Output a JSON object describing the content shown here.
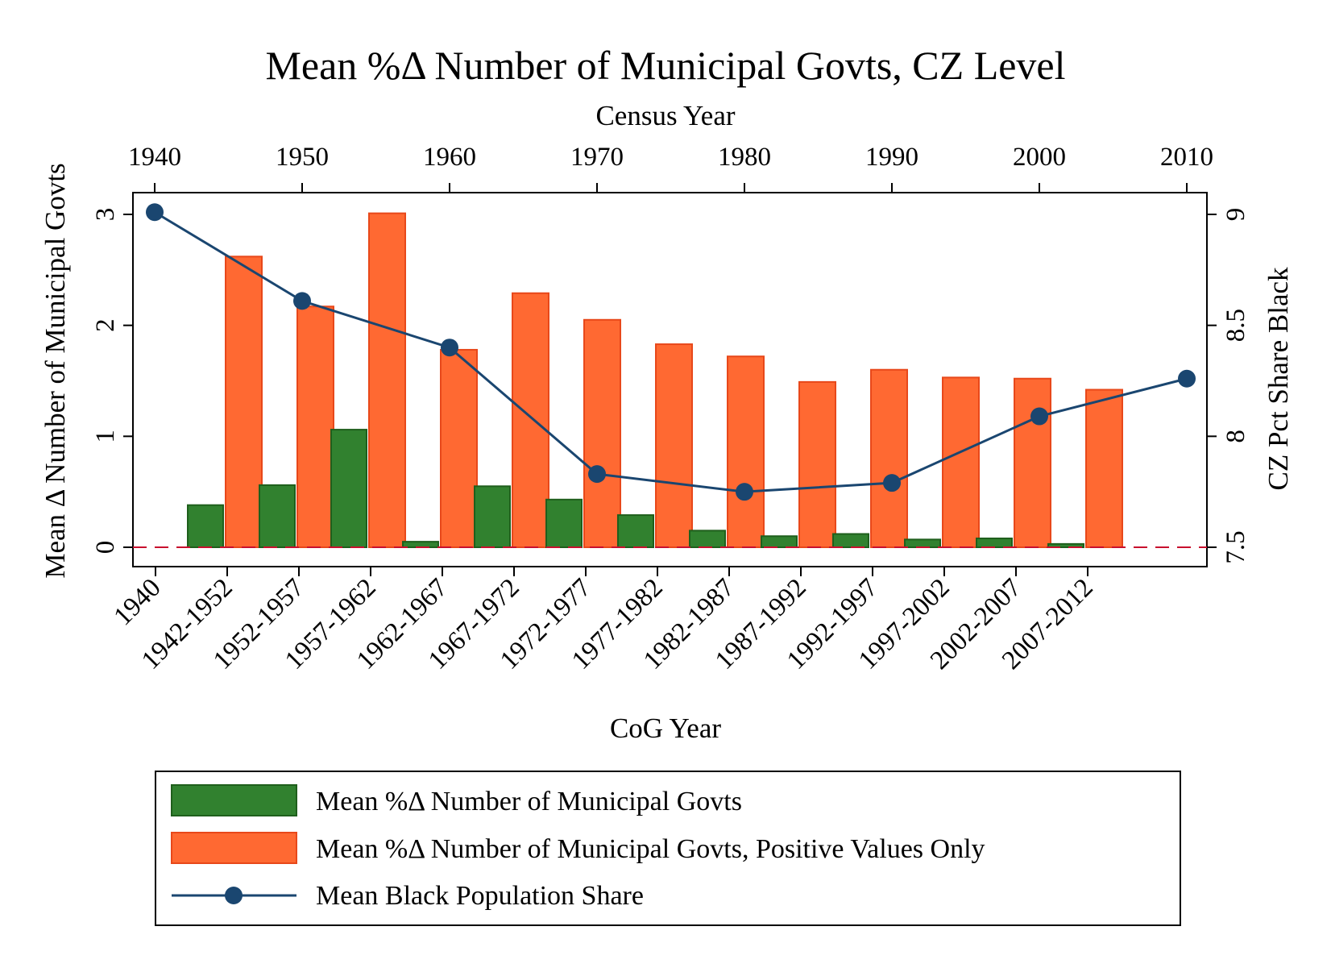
{
  "chart_data": {
    "type": "bar",
    "title": "Mean %Δ Number of Municipal Govts, CZ Level",
    "xlabel": "CoG Year",
    "ylabel": "Mean Δ Number of Municipal Govts",
    "ylabel_right": "CZ Pct Share Black",
    "xlabel_top": "Census Year",
    "ylim": [
      0,
      3
    ],
    "ylim_right": [
      7.5,
      9
    ],
    "yticks": [
      "0",
      "1",
      "2",
      "3"
    ],
    "yticks_right": [
      "7.5",
      "8",
      "8.5",
      "9"
    ],
    "xlim_top": [
      1940,
      2010
    ],
    "top_ticks": [
      "1940",
      "1950",
      "1960",
      "1970",
      "1980",
      "1990",
      "2000",
      "2010"
    ],
    "categories": [
      "1940",
      "1942-1952",
      "1952-1957",
      "1957-1962",
      "1962-1967",
      "1967-1972",
      "1972-1977",
      "1977-1982",
      "1982-1987",
      "1987-1992",
      "1992-1997",
      "1997-2002",
      "2002-2007",
      "2007-2012"
    ],
    "series": [
      {
        "name": "Mean %Δ Number of Municipal Govts",
        "type": "bar",
        "color": "#31812f",
        "values": [
          null,
          0.38,
          0.56,
          1.06,
          0.05,
          0.55,
          0.43,
          0.29,
          0.15,
          0.1,
          0.12,
          0.07,
          0.08,
          0.03
        ]
      },
      {
        "name": "Mean %Δ Number of Municipal Govts, Positive Values Only",
        "type": "bar",
        "color": "#ff6932",
        "values": [
          null,
          2.62,
          2.17,
          3.01,
          1.78,
          2.29,
          2.05,
          1.83,
          1.72,
          1.49,
          1.6,
          1.53,
          1.52,
          1.42
        ]
      },
      {
        "name": "Mean Black Population Share",
        "type": "line",
        "axis": "right",
        "color": "#1a4670",
        "x": [
          1940,
          1950,
          1960,
          1970,
          1980,
          1990,
          2000,
          2010
        ],
        "values": [
          9.01,
          8.61,
          8.4,
          7.83,
          7.75,
          7.79,
          8.09,
          8.26
        ]
      }
    ],
    "reference_line": {
      "y": 0,
      "style": "dashed",
      "color": "#c8102e"
    },
    "legend_position": "bottom"
  }
}
